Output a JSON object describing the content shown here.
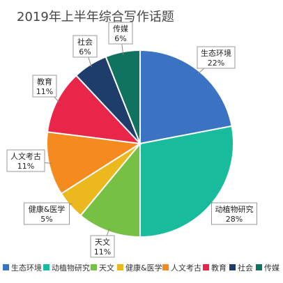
{
  "chart_data": {
    "type": "pie",
    "title": "2019年上半年综合写作话题",
    "legend": "bottom",
    "slices": [
      {
        "label": "生态环境",
        "value": 22,
        "color": "#3a73c2"
      },
      {
        "label": "动植物研究",
        "value": 28,
        "color": "#18bc9c"
      },
      {
        "label": "天文",
        "value": 11,
        "color": "#76c043"
      },
      {
        "label": "健康&医学",
        "value": 5,
        "color": "#ebb81d"
      },
      {
        "label": "人文考古",
        "value": 11,
        "color": "#f58b1f"
      },
      {
        "label": "教育",
        "value": 11,
        "color": "#e9264a"
      },
      {
        "label": "社会",
        "value": 6,
        "color": "#1f3d6b"
      },
      {
        "label": "传媒",
        "value": 6,
        "color": "#0f735f"
      }
    ]
  }
}
